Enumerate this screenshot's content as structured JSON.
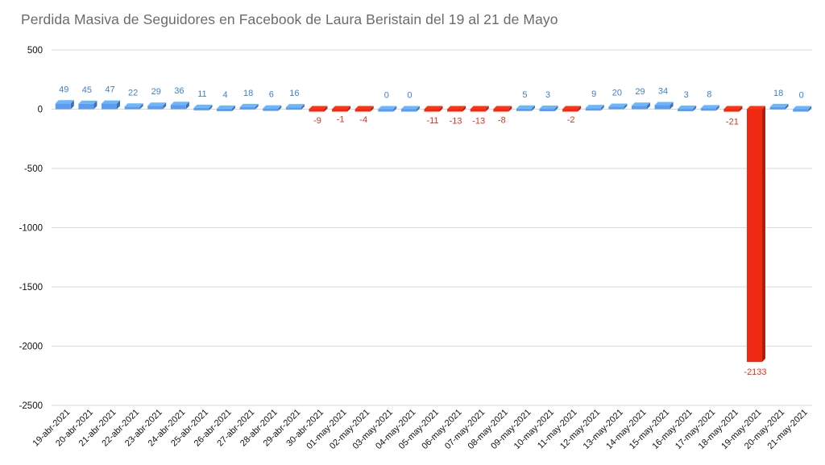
{
  "chart_data": {
    "type": "bar",
    "title": "Perdida Masiva de Seguidores en Facebook de Laura Beristain del 19 al 21 de Mayo",
    "xlabel": "",
    "ylabel": "",
    "ylim": [
      -2500,
      500
    ],
    "yticks": [
      500,
      0,
      -500,
      -1000,
      -1500,
      -2000,
      -2500
    ],
    "grid": true,
    "legend": "none",
    "colors": {
      "positive": "#5b9bf0",
      "negative": "#f02a12",
      "positive_label": "#3d7fd6",
      "negative_label": "#e0301e"
    },
    "categories": [
      "19-abr-2021",
      "20-abr-2021",
      "21-abr-2021",
      "22-abr-2021",
      "23-abr-2021",
      "24-abr-2021",
      "25-abr-2021",
      "26-abr-2021",
      "27-abr-2021",
      "28-abr-2021",
      "29-abr-2021",
      "30-abr-2021",
      "01-may-2021",
      "02-may-2021",
      "03-may-2021",
      "04-may-2021",
      "05-may-2021",
      "06-may-2021",
      "07-may-2021",
      "08-may-2021",
      "09-may-2021",
      "10-may-2021",
      "11-may-2021",
      "12-may-2021",
      "13-may-2021",
      "14-may-2021",
      "15-may-2021",
      "16-may-2021",
      "17-may-2021",
      "18-may-2021",
      "19-may-2021",
      "20-may-2021",
      "21-may-2021"
    ],
    "values": [
      49,
      45,
      47,
      22,
      29,
      36,
      11,
      4,
      18,
      6,
      16,
      -9,
      -1,
      -4,
      0,
      0,
      -11,
      -13,
      -13,
      -8,
      5,
      3,
      -2,
      9,
      20,
      29,
      34,
      3,
      8,
      -21,
      -2133,
      18,
      0
    ]
  }
}
